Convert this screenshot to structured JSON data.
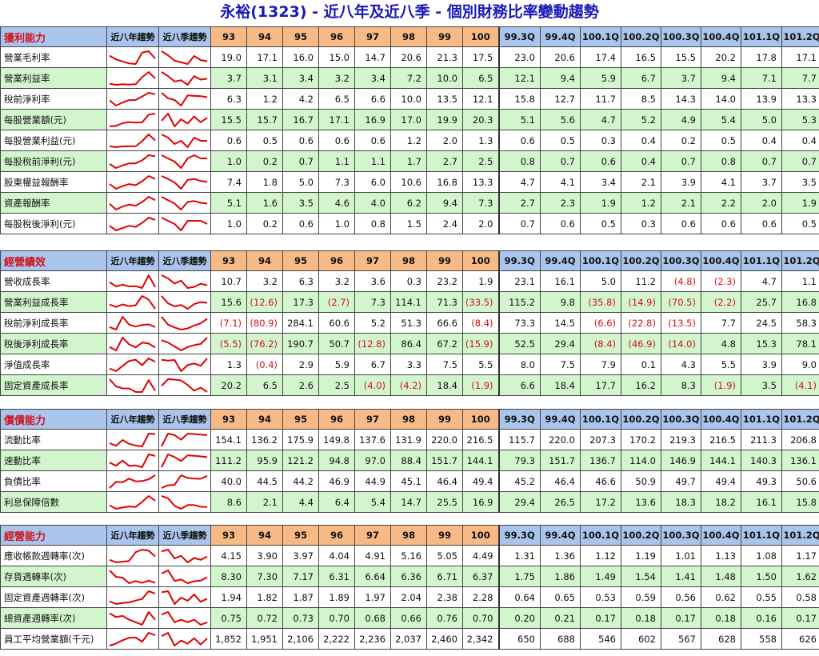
{
  "title": "永裕(1323) - 近八年及近八季 - 個別財務比率變動趨勢",
  "colors": {
    "title": "#1a1ab8",
    "section_title": "#d0121b",
    "negative": "#d0121b",
    "year_header_bg": "#f7b985",
    "quarter_header_bg": "#a9c5ec",
    "alt_row_bg": "#d3f5cd",
    "sparkline": "#e00000"
  },
  "headers": {
    "trend_year": "近八年趨勢",
    "trend_quarter": "近八季趨勢",
    "years": [
      "93",
      "94",
      "95",
      "96",
      "97",
      "98",
      "99",
      "100"
    ],
    "quarters": [
      "99.3Q",
      "99.4Q",
      "100.1Q",
      "100.2Q",
      "100.3Q",
      "100.4Q",
      "101.1Q",
      "101.2Q"
    ]
  },
  "sections": [
    {
      "title": "獲利能力",
      "rows": [
        {
          "label": "營業毛利率",
          "years": [
            "19.0",
            "17.1",
            "16.0",
            "15.0",
            "14.7",
            "20.6",
            "21.3",
            "17.5"
          ],
          "quarters": [
            "23.0",
            "20.6",
            "17.4",
            "16.5",
            "15.5",
            "20.2",
            "17.8",
            "17.1"
          ]
        },
        {
          "label": "營業利益率",
          "years": [
            "3.7",
            "3.1",
            "3.4",
            "3.2",
            "3.4",
            "7.2",
            "10.0",
            "6.5"
          ],
          "quarters": [
            "12.1",
            "9.4",
            "5.9",
            "6.7",
            "3.7",
            "9.4",
            "7.1",
            "7.7"
          ]
        },
        {
          "label": "稅前淨利率",
          "years": [
            "6.3",
            "1.2",
            "4.2",
            "6.5",
            "6.6",
            "10.0",
            "13.5",
            "12.1"
          ],
          "quarters": [
            "15.8",
            "12.7",
            "11.7",
            "8.5",
            "14.3",
            "14.0",
            "13.9",
            "13.3"
          ]
        },
        {
          "label": "每股營業額(元)",
          "years": [
            "15.5",
            "15.7",
            "16.7",
            "17.1",
            "16.9",
            "17.0",
            "19.9",
            "20.3"
          ],
          "quarters": [
            "5.1",
            "5.6",
            "4.7",
            "5.2",
            "4.9",
            "5.4",
            "5.0",
            "5.3"
          ]
        },
        {
          "label": "每股營業利益(元)",
          "years": [
            "0.6",
            "0.5",
            "0.6",
            "0.6",
            "0.6",
            "1.2",
            "2.0",
            "1.3"
          ],
          "quarters": [
            "0.6",
            "0.5",
            "0.3",
            "0.4",
            "0.2",
            "0.5",
            "0.4",
            "0.4"
          ]
        },
        {
          "label": "每股稅前淨利(元)",
          "years": [
            "1.0",
            "0.2",
            "0.7",
            "1.1",
            "1.1",
            "1.7",
            "2.7",
            "2.5"
          ],
          "quarters": [
            "0.8",
            "0.7",
            "0.6",
            "0.4",
            "0.7",
            "0.8",
            "0.7",
            "0.7"
          ]
        },
        {
          "label": "股東權益報酬率",
          "years": [
            "7.4",
            "1.8",
            "5.0",
            "7.3",
            "6.0",
            "10.6",
            "16.8",
            "13.3"
          ],
          "quarters": [
            "4.7",
            "4.1",
            "3.4",
            "2.1",
            "3.9",
            "4.1",
            "3.7",
            "3.5"
          ]
        },
        {
          "label": "資產報酬率",
          "years": [
            "5.1",
            "1.6",
            "3.5",
            "4.6",
            "4.0",
            "6.2",
            "9.4",
            "7.3"
          ],
          "quarters": [
            "2.7",
            "2.3",
            "1.9",
            "1.2",
            "2.1",
            "2.2",
            "2.0",
            "1.9"
          ]
        },
        {
          "label": "每股稅後淨利(元)",
          "years": [
            "1.0",
            "0.2",
            "0.6",
            "1.0",
            "0.8",
            "1.5",
            "2.4",
            "2.0"
          ],
          "quarters": [
            "0.7",
            "0.6",
            "0.5",
            "0.3",
            "0.6",
            "0.6",
            "0.6",
            "0.5"
          ]
        }
      ]
    },
    {
      "title": "經營績效",
      "rows": [
        {
          "label": "營收成長率",
          "years": [
            "10.7",
            "3.2",
            "6.3",
            "3.2",
            "3.6",
            "0.3",
            "23.2",
            "1.9"
          ],
          "quarters": [
            "23.1",
            "16.1",
            "5.0",
            "11.2",
            "(4.8)",
            "(2.3)",
            "4.7",
            "1.1"
          ]
        },
        {
          "label": "營業利益成長率",
          "years": [
            "15.6",
            "(12.6)",
            "17.3",
            "(2.7)",
            "7.3",
            "114.1",
            "71.3",
            "(33.5)"
          ],
          "quarters": [
            "115.2",
            "9.8",
            "(35.8)",
            "(14.9)",
            "(70.5)",
            "(2.2)",
            "25.7",
            "16.8"
          ]
        },
        {
          "label": "稅前淨利成長率",
          "years": [
            "(7.1)",
            "(80.9)",
            "284.1",
            "60.6",
            "5.2",
            "51.3",
            "66.6",
            "(8.4)"
          ],
          "quarters": [
            "73.3",
            "14.5",
            "(6.6)",
            "(22.8)",
            "(13.5)",
            "7.7",
            "24.5",
            "58.3"
          ]
        },
        {
          "label": "稅後淨利成長率",
          "years": [
            "(5.5)",
            "(76.2)",
            "190.7",
            "50.7",
            "(12.8)",
            "86.4",
            "67.2",
            "(15.9)"
          ],
          "quarters": [
            "52.5",
            "29.4",
            "(8.4)",
            "(46.9)",
            "(14.0)",
            "4.8",
            "15.3",
            "78.1"
          ]
        },
        {
          "label": "淨值成長率",
          "years": [
            "1.3",
            "(0.4)",
            "2.9",
            "5.9",
            "6.7",
            "3.3",
            "7.5",
            "5.5"
          ],
          "quarters": [
            "8.0",
            "7.5",
            "7.9",
            "0.1",
            "4.3",
            "5.5",
            "3.9",
            "9.0"
          ]
        },
        {
          "label": "固定資產成長率",
          "years": [
            "20.2",
            "6.5",
            "2.6",
            "2.5",
            "(4.0)",
            "(4.2)",
            "18.4",
            "(1.9)"
          ],
          "quarters": [
            "6.6",
            "18.4",
            "17.7",
            "16.2",
            "8.3",
            "(1.9)",
            "3.5",
            "(4.1)"
          ]
        }
      ]
    },
    {
      "title": "償債能力",
      "rows": [
        {
          "label": "流動比率",
          "years": [
            "154.1",
            "136.2",
            "175.9",
            "149.8",
            "137.6",
            "131.9",
            "220.0",
            "216.5"
          ],
          "quarters": [
            "115.7",
            "220.0",
            "207.3",
            "170.2",
            "219.3",
            "216.5",
            "211.3",
            "206.8"
          ]
        },
        {
          "label": "速動比率",
          "years": [
            "111.2",
            "95.9",
            "121.2",
            "94.8",
            "97.0",
            "88.4",
            "151.7",
            "144.1"
          ],
          "quarters": [
            "79.3",
            "151.7",
            "136.7",
            "114.0",
            "146.9",
            "144.1",
            "140.3",
            "136.1"
          ]
        },
        {
          "label": "負債比率",
          "years": [
            "40.0",
            "44.5",
            "44.2",
            "46.9",
            "44.9",
            "45.1",
            "46.4",
            "49.4"
          ],
          "quarters": [
            "45.2",
            "46.4",
            "46.6",
            "50.9",
            "49.7",
            "49.4",
            "49.3",
            "50.6"
          ]
        },
        {
          "label": "利息保障倍數",
          "years": [
            "8.6",
            "2.1",
            "4.4",
            "6.4",
            "5.4",
            "14.7",
            "25.5",
            "16.9"
          ],
          "quarters": [
            "29.4",
            "26.5",
            "17.2",
            "13.6",
            "18.3",
            "18.2",
            "16.1",
            "15.8"
          ]
        }
      ]
    },
    {
      "title": "經營能力",
      "rows": [
        {
          "label": "應收帳款週轉率(次)",
          "years": [
            "4.15",
            "3.90",
            "3.97",
            "4.04",
            "4.91",
            "5.16",
            "5.05",
            "4.49"
          ],
          "quarters": [
            "1.31",
            "1.36",
            "1.12",
            "1.19",
            "1.01",
            "1.13",
            "1.08",
            "1.17"
          ]
        },
        {
          "label": "存貨週轉率(次)",
          "years": [
            "8.30",
            "7.30",
            "7.17",
            "6.31",
            "6.64",
            "6.36",
            "6.71",
            "6.37"
          ],
          "quarters": [
            "1.75",
            "1.86",
            "1.49",
            "1.54",
            "1.41",
            "1.48",
            "1.50",
            "1.62"
          ]
        },
        {
          "label": "固定資產週轉率(次)",
          "years": [
            "1.94",
            "1.82",
            "1.87",
            "1.89",
            "1.97",
            "2.04",
            "2.38",
            "2.28"
          ],
          "quarters": [
            "0.64",
            "0.65",
            "0.53",
            "0.59",
            "0.56",
            "0.62",
            "0.55",
            "0.58"
          ]
        },
        {
          "label": "總資產週轉率(次)",
          "years": [
            "0.75",
            "0.72",
            "0.73",
            "0.70",
            "0.68",
            "0.66",
            "0.76",
            "0.70"
          ],
          "quarters": [
            "0.20",
            "0.21",
            "0.17",
            "0.18",
            "0.17",
            "0.18",
            "0.16",
            "0.17"
          ]
        },
        {
          "label": "員工平均營業額(千元)",
          "years": [
            "1,852",
            "1,951",
            "2,106",
            "2,222",
            "2,236",
            "2,037",
            "2,460",
            "2,342"
          ],
          "quarters": [
            "650",
            "688",
            "546",
            "602",
            "567",
            "628",
            "558",
            "626"
          ]
        }
      ]
    }
  ]
}
